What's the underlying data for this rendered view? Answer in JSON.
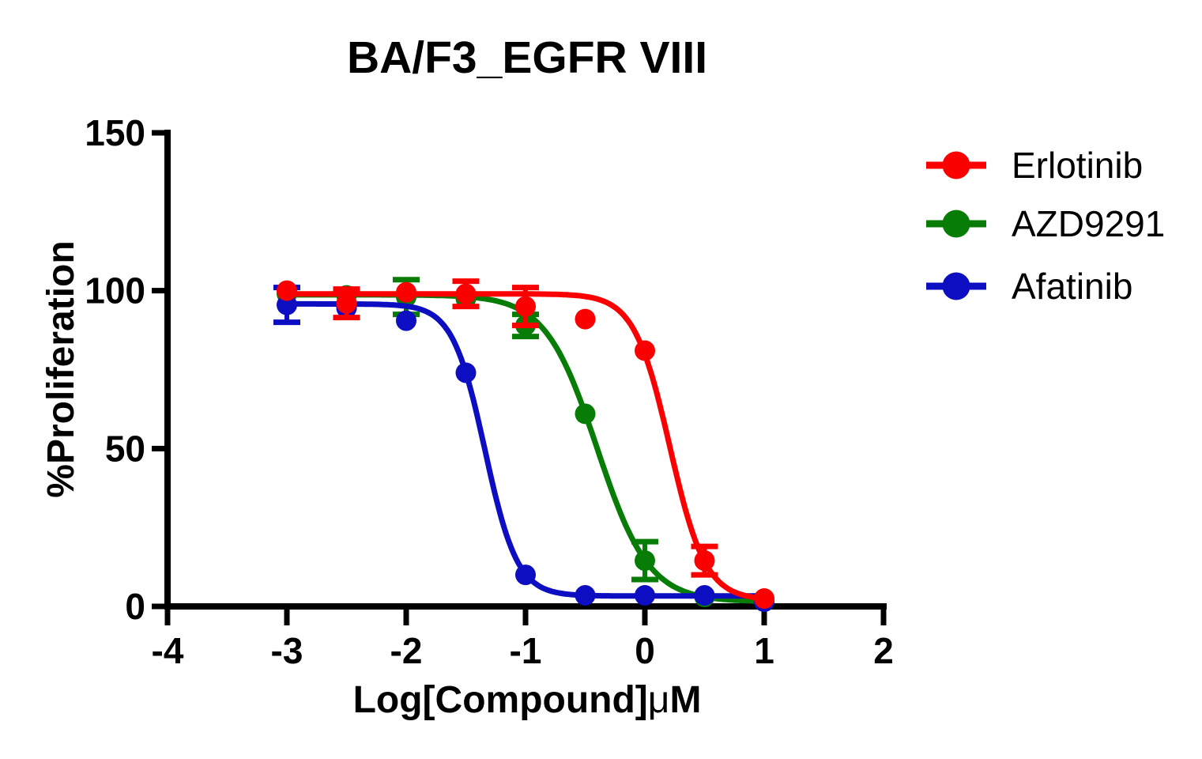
{
  "chart_data": {
    "type": "line",
    "title": "BA/F3_EGFR VIII",
    "xlabel": "Log[Compound]μM",
    "xlabel_parts": {
      "main": "Log[Compound]",
      "mu": "μ",
      "unit": "M"
    },
    "ylabel": "%Proliferation",
    "xlim": [
      -4,
      2
    ],
    "ylim": [
      0,
      150
    ],
    "xticks": [
      -4,
      -3,
      -2,
      -1,
      0,
      1,
      2
    ],
    "xtick_labels": [
      "-4",
      "-3",
      "-2",
      "-1",
      "0",
      "1",
      "2"
    ],
    "yticks": [
      0,
      50,
      100,
      150
    ],
    "ytick_labels": [
      "0",
      "50",
      "100",
      "150"
    ],
    "grid": false,
    "legend_position": "right",
    "axis_color": "#000000",
    "x": [
      -3,
      -2.5,
      -2,
      -1.5,
      -1,
      -0.5,
      0,
      0.5,
      1
    ],
    "series": [
      {
        "name": "Erlotinib",
        "color": "#fa0000",
        "values": [
          100,
          96,
          99.5,
          99,
          95,
          91,
          81,
          14.5,
          2.5
        ],
        "errors": [
          0,
          4.5,
          0,
          4,
          6,
          0,
          0,
          4.5,
          0
        ],
        "curve": {
          "model": "four-param-logistic",
          "top": 99,
          "bottom": 2,
          "logIC50": 0.21,
          "hill": 2.9
        }
      },
      {
        "name": "AZD9291",
        "color": "#077d08",
        "values": [
          99,
          98.5,
          98,
          97.5,
          89,
          61,
          14.5,
          3,
          1.5
        ],
        "errors": [
          0,
          0,
          5.5,
          0,
          3.5,
          0,
          6,
          0,
          0
        ],
        "curve": {
          "model": "four-param-logistic",
          "top": 98.7,
          "bottom": 1.5,
          "logIC50": -0.4,
          "hill": 2.0
        }
      },
      {
        "name": "Afatinib",
        "color": "#0d0dc1",
        "values": [
          95.5,
          94.5,
          90.5,
          74,
          10,
          3.5,
          3.5,
          3.5,
          1.5
        ],
        "errors": [
          5.5,
          0,
          0,
          0,
          0,
          0,
          0,
          0,
          0
        ],
        "curve": {
          "model": "four-param-logistic",
          "top": 95.8,
          "bottom": 3.3,
          "logIC50": -1.34,
          "hill": 3.2
        }
      }
    ]
  }
}
